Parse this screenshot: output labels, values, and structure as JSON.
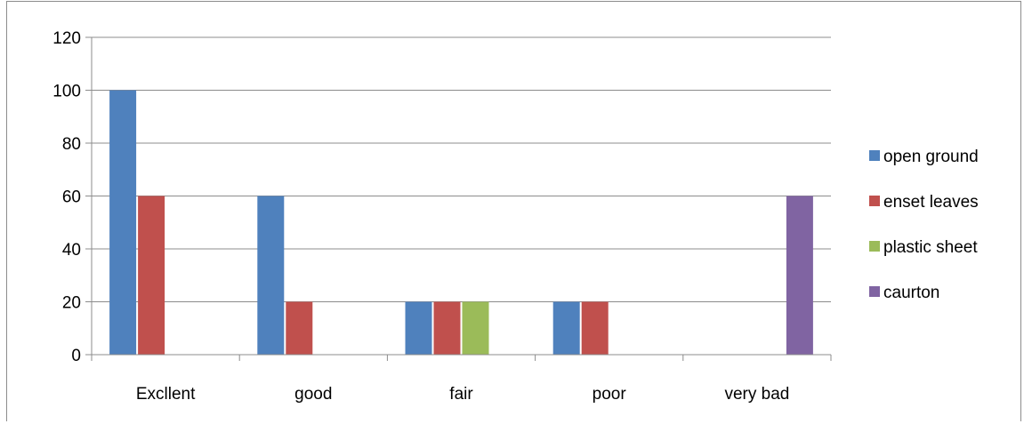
{
  "chart_data": {
    "type": "bar",
    "categories": [
      "Excllent",
      "good",
      "fair",
      "poor",
      "very bad"
    ],
    "series": [
      {
        "name": "open ground",
        "color": "#4f81bd",
        "values": [
          100,
          60,
          20,
          20,
          0
        ]
      },
      {
        "name": "enset leaves",
        "color": "#c0504d",
        "values": [
          60,
          20,
          20,
          20,
          0
        ]
      },
      {
        "name": "plastic sheet",
        "color": "#9bbb59",
        "values": [
          0,
          0,
          20,
          0,
          0
        ]
      },
      {
        "name": "caurton",
        "color": "#8064a2",
        "values": [
          0,
          0,
          0,
          0,
          60
        ]
      }
    ],
    "ylim": [
      0,
      120
    ],
    "yticks": [
      "0",
      "20",
      "40",
      "60",
      "80",
      "100",
      "120"
    ],
    "grid": true,
    "legend_position": "right"
  }
}
